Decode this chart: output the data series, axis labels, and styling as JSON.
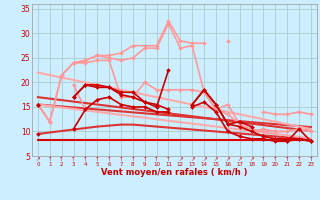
{
  "bg_color": "#cceeff",
  "grid_color": "#aacccc",
  "xlabel": "Vent moyen/en rafales ( km/h )",
  "x": [
    0,
    1,
    2,
    3,
    4,
    5,
    6,
    7,
    8,
    9,
    10,
    11,
    12,
    13,
    14,
    15,
    16,
    17,
    18,
    19,
    20,
    21,
    22,
    23
  ],
  "ylim": [
    5,
    36
  ],
  "xlim": [
    -0.5,
    23.5
  ],
  "yticks": [
    5,
    10,
    15,
    20,
    25,
    30,
    35
  ],
  "lines": [
    {
      "y": [
        8.3,
        8.3,
        8.3,
        8.3,
        8.3,
        8.3,
        8.3,
        8.3,
        8.3,
        8.3,
        8.3,
        8.3,
        8.3,
        8.3,
        8.3,
        8.3,
        8.3,
        8.3,
        8.3,
        8.3,
        8.3,
        8.3,
        8.3,
        8.3
      ],
      "color": "#dd0000",
      "lw": 1.5,
      "marker": null,
      "ms": 0
    },
    {
      "y": [
        15.5,
        null,
        null,
        null,
        null,
        null,
        null,
        null,
        null,
        null,
        null,
        null,
        null,
        null,
        null,
        null,
        null,
        null,
        null,
        null,
        null,
        null,
        null,
        7.5
      ],
      "color": "#cc0000",
      "lw": 2.0,
      "marker": null,
      "ms": 0
    },
    {
      "y": [
        17.0,
        16.7,
        16.4,
        16.1,
        15.8,
        15.5,
        15.2,
        14.9,
        14.6,
        14.3,
        14.0,
        13.7,
        13.4,
        13.1,
        12.8,
        12.5,
        12.2,
        11.9,
        11.6,
        11.3,
        11.0,
        10.7,
        10.4,
        10.1
      ],
      "color": "#dd3333",
      "lw": 1.5,
      "marker": null,
      "ms": 0
    },
    {
      "y": [
        15.5,
        15.3,
        15.1,
        14.9,
        14.7,
        14.5,
        14.3,
        14.1,
        13.9,
        13.7,
        13.5,
        13.3,
        13.1,
        12.9,
        12.7,
        12.5,
        12.3,
        12.1,
        11.9,
        11.7,
        11.5,
        11.3,
        11.1,
        10.9
      ],
      "color": "#dd3333",
      "lw": 1.5,
      "marker": null,
      "ms": 0
    },
    {
      "y": [
        9.5,
        9.8,
        10.1,
        10.4,
        10.7,
        11.0,
        11.2,
        11.4,
        11.4,
        11.2,
        11.0,
        10.8,
        10.6,
        10.4,
        10.2,
        10.0,
        9.8,
        9.6,
        9.4,
        9.2,
        9.0,
        8.8,
        8.6,
        8.4
      ],
      "color": "#dd3333",
      "lw": 1.5,
      "marker": null,
      "ms": 0
    },
    {
      "y": [
        22.0,
        21.5,
        21.0,
        20.5,
        20.0,
        19.5,
        19.0,
        18.5,
        18.0,
        17.5,
        17.0,
        16.5,
        16.0,
        15.5,
        15.0,
        14.5,
        14.0,
        13.5,
        13.0,
        12.5,
        12.0,
        11.5,
        11.0,
        10.5
      ],
      "color": "#ffaaaa",
      "lw": 1.5,
      "marker": null,
      "ms": 0
    },
    {
      "y": [
        15.5,
        15.2,
        14.9,
        14.6,
        14.3,
        14.0,
        13.7,
        13.4,
        13.1,
        12.8,
        12.5,
        12.2,
        11.9,
        11.6,
        11.3,
        11.0,
        10.7,
        10.4,
        10.1,
        9.8,
        9.5,
        9.2,
        8.9,
        8.6
      ],
      "color": "#ffaaaa",
      "lw": 1.5,
      "marker": null,
      "ms": 0
    },
    {
      "y": [
        15.5,
        12.0,
        null,
        null,
        null,
        null,
        null,
        null,
        null,
        null,
        null,
        null,
        null,
        null,
        null,
        null,
        null,
        null,
        null,
        null,
        null,
        null,
        null,
        null
      ],
      "color": "#ff9999",
      "lw": 1.2,
      "marker": "D",
      "ms": 2
    },
    {
      "y": [
        null,
        null,
        null,
        19.5,
        14.5,
        null,
        null,
        null,
        null,
        null,
        null,
        null,
        null,
        null,
        null,
        null,
        null,
        null,
        null,
        null,
        null,
        null,
        null,
        null
      ],
      "color": "#ff9999",
      "lw": 1.2,
      "marker": "D",
      "ms": 2
    },
    {
      "y": [
        15.5,
        12.0,
        21.5,
        24.0,
        24.5,
        25.5,
        25.5,
        26.0,
        27.5,
        27.5,
        27.5,
        32.5,
        28.5,
        28.0,
        28.0,
        null,
        28.5,
        null,
        null,
        null,
        null,
        null,
        null,
        null
      ],
      "color": "#ff9999",
      "lw": 1.2,
      "marker": "D",
      "ms": 2
    },
    {
      "y": [
        null,
        null,
        null,
        null,
        null,
        null,
        null,
        null,
        null,
        null,
        null,
        null,
        null,
        null,
        null,
        null,
        null,
        null,
        null,
        14.0,
        13.5,
        13.5,
        14.0,
        13.5
      ],
      "color": "#ff9999",
      "lw": 1.2,
      "marker": "D",
      "ms": 2
    },
    {
      "y": [
        15.5,
        12.0,
        21.5,
        24.0,
        24.5,
        25.5,
        25.0,
        24.5,
        25.0,
        27.0,
        27.0,
        32.0,
        27.0,
        27.5,
        18.0,
        14.5,
        15.5,
        11.5,
        10.5,
        10.0,
        10.0,
        10.0,
        10.5,
        10.0
      ],
      "color": "#ff9999",
      "lw": 1.2,
      "marker": "D",
      "ms": 2
    },
    {
      "y": [
        15.5,
        null,
        null,
        24.0,
        24.0,
        24.5,
        24.5,
        17.0,
        17.0,
        20.0,
        18.5,
        18.5,
        18.5,
        18.5,
        18.0,
        14.5,
        13.5,
        11.5,
        10.0,
        10.5,
        10.0,
        10.0,
        10.5,
        10.0
      ],
      "color": "#ff9999",
      "lw": 1.2,
      "marker": "D",
      "ms": 2
    },
    {
      "y": [
        15.5,
        null,
        null,
        17.0,
        19.5,
        19.0,
        19.0,
        17.5,
        17.0,
        16.0,
        15.0,
        22.5,
        null,
        15.5,
        18.5,
        15.5,
        11.5,
        12.0,
        11.0,
        null,
        8.5,
        8.0,
        10.5,
        8.0
      ],
      "color": "#cc0000",
      "lw": 1.2,
      "marker": "D",
      "ms": 2
    },
    {
      "y": [
        15.5,
        null,
        null,
        17.0,
        19.5,
        19.5,
        19.0,
        18.0,
        18.0,
        16.0,
        15.5,
        14.5,
        null,
        15.5,
        18.5,
        15.5,
        11.5,
        11.0,
        10.0,
        9.0,
        8.5,
        8.5,
        8.5,
        8.0
      ],
      "color": "#cc0000",
      "lw": 1.2,
      "marker": "D",
      "ms": 2
    },
    {
      "y": [
        9.5,
        null,
        null,
        10.5,
        14.5,
        16.5,
        17.0,
        15.5,
        15.0,
        15.0,
        14.0,
        14.0,
        null,
        15.0,
        16.0,
        14.0,
        10.0,
        9.0,
        8.5,
        8.5,
        8.0,
        8.0,
        8.5,
        8.0
      ],
      "color": "#cc0000",
      "lw": 1.2,
      "marker": "D",
      "ms": 2
    }
  ],
  "arrows": [
    "↗",
    "↑",
    "↑",
    "↑",
    "↑",
    "↑",
    "↑",
    "↑",
    "↑",
    "↑",
    "↑",
    "↑",
    "↗",
    "↗",
    "↗",
    "↗",
    "↗",
    "↗",
    "↗",
    "↑",
    "↑",
    "↑",
    "↑",
    "↑"
  ]
}
